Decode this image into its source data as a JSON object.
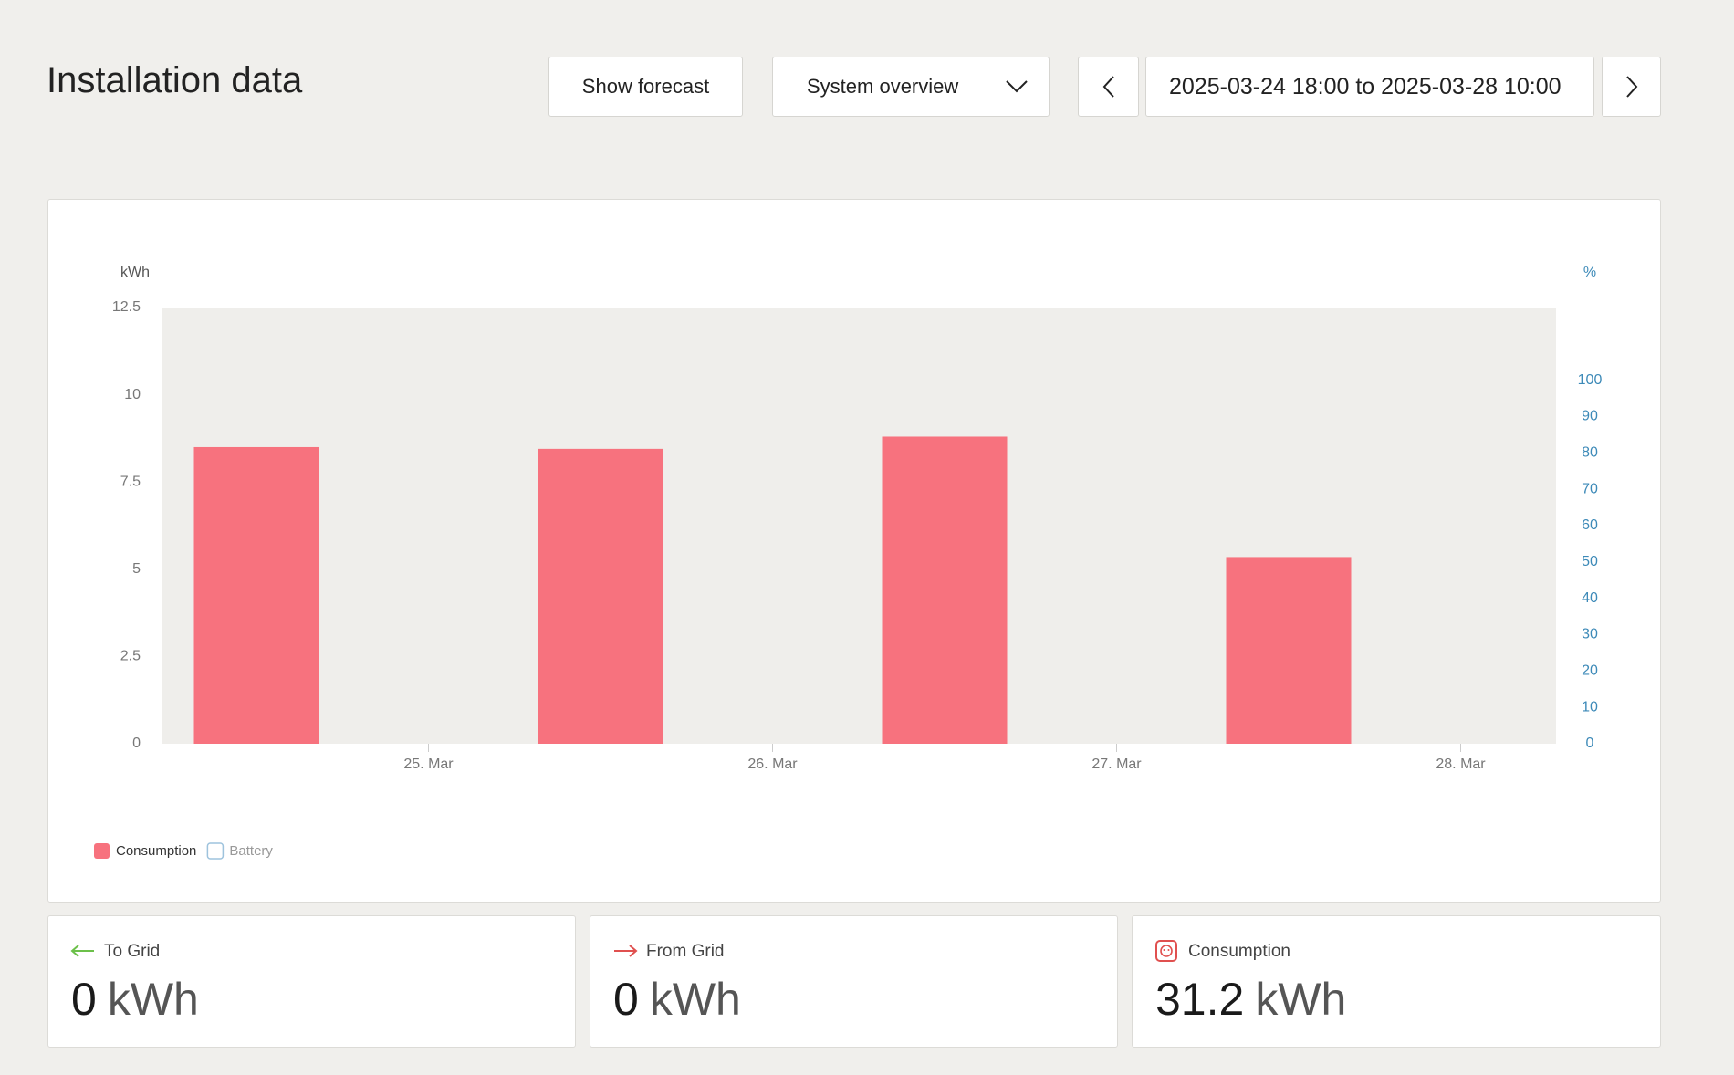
{
  "header": {
    "title": "Installation data",
    "forecast_button": "Show forecast",
    "view_select": "System overview",
    "date_range": "2025-03-24 18:00 to 2025-03-28 10:00"
  },
  "chart_data": {
    "type": "bar",
    "y_label": "kWh",
    "y2_label": "%",
    "categories": [
      null,
      null,
      null,
      null
    ],
    "series": [
      {
        "name": "Consumption",
        "color": "#f7727e",
        "values": [
          8.5,
          8.45,
          8.8,
          5.35
        ]
      },
      {
        "name": "Battery",
        "color": "#9ec3dd",
        "axis": "y2",
        "values": [
          null,
          null,
          null,
          null
        ]
      }
    ],
    "xticks": [
      "25. Mar",
      "26. Mar",
      "27. Mar",
      "28. Mar"
    ],
    "ylim": [
      0,
      12.5
    ],
    "yticks": [
      0,
      2.5,
      5,
      7.5,
      10,
      12.5
    ],
    "y2lim": [
      0,
      120
    ],
    "y2ticks": [
      0,
      10,
      20,
      30,
      40,
      50,
      60,
      70,
      80,
      90,
      100
    ],
    "y2_color": "#3d8ab8",
    "plot_background": "#efeeeb",
    "grid": false
  },
  "stats": [
    {
      "label": "To Grid",
      "value": "0",
      "unit": "kWh"
    },
    {
      "label": "From Grid",
      "value": "0",
      "unit": "kWh"
    },
    {
      "label": "Consumption",
      "value": "31.2",
      "unit": "kWh"
    }
  ]
}
